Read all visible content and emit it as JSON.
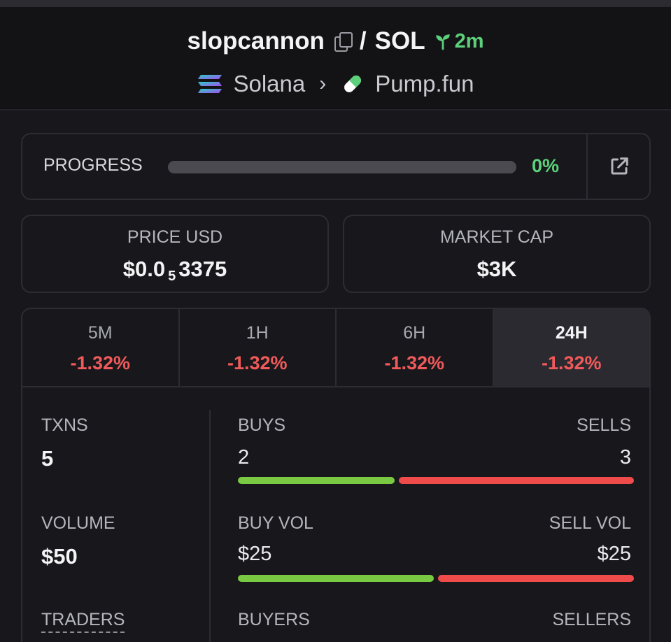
{
  "header": {
    "token_name": "slopcannon",
    "separator": "/",
    "quote_symbol": "SOL",
    "age": "2m",
    "chain": "Solana",
    "dex": "Pump.fun"
  },
  "progress": {
    "label": "PROGRESS",
    "value_text": "0%",
    "fraction": 0
  },
  "price": {
    "label": "PRICE USD",
    "prefix": "$0.0",
    "zero_count": "5",
    "digits": "3375"
  },
  "market_cap": {
    "label": "MARKET CAP",
    "value": "$3K"
  },
  "timeframes": [
    {
      "label": "5M",
      "change": "-1.32%"
    },
    {
      "label": "1H",
      "change": "-1.32%"
    },
    {
      "label": "6H",
      "change": "-1.32%"
    },
    {
      "label": "24H",
      "change": "-1.32%",
      "active": true
    }
  ],
  "metrics": {
    "txns": {
      "label": "TXNS",
      "value": "5"
    },
    "volume": {
      "label": "VOLUME",
      "value": "$50"
    },
    "traders": {
      "label": "TRADERS"
    },
    "buys": {
      "label": "BUYS",
      "value": "2"
    },
    "sells": {
      "label": "SELLS",
      "value": "3"
    },
    "buy_vol": {
      "label": "BUY VOL",
      "value": "$25"
    },
    "sell_vol": {
      "label": "SELL VOL",
      "value": "$25"
    },
    "buyers": {
      "label": "BUYERS"
    },
    "sellers": {
      "label": "SELLERS"
    },
    "buys_ratio": 0.4,
    "buy_vol_ratio": 0.5
  },
  "colors": {
    "positive": "#5cd07a",
    "negative": "#f05a5a",
    "buy_bar": "#7ac943",
    "sell_bar": "#ef4b4b"
  }
}
